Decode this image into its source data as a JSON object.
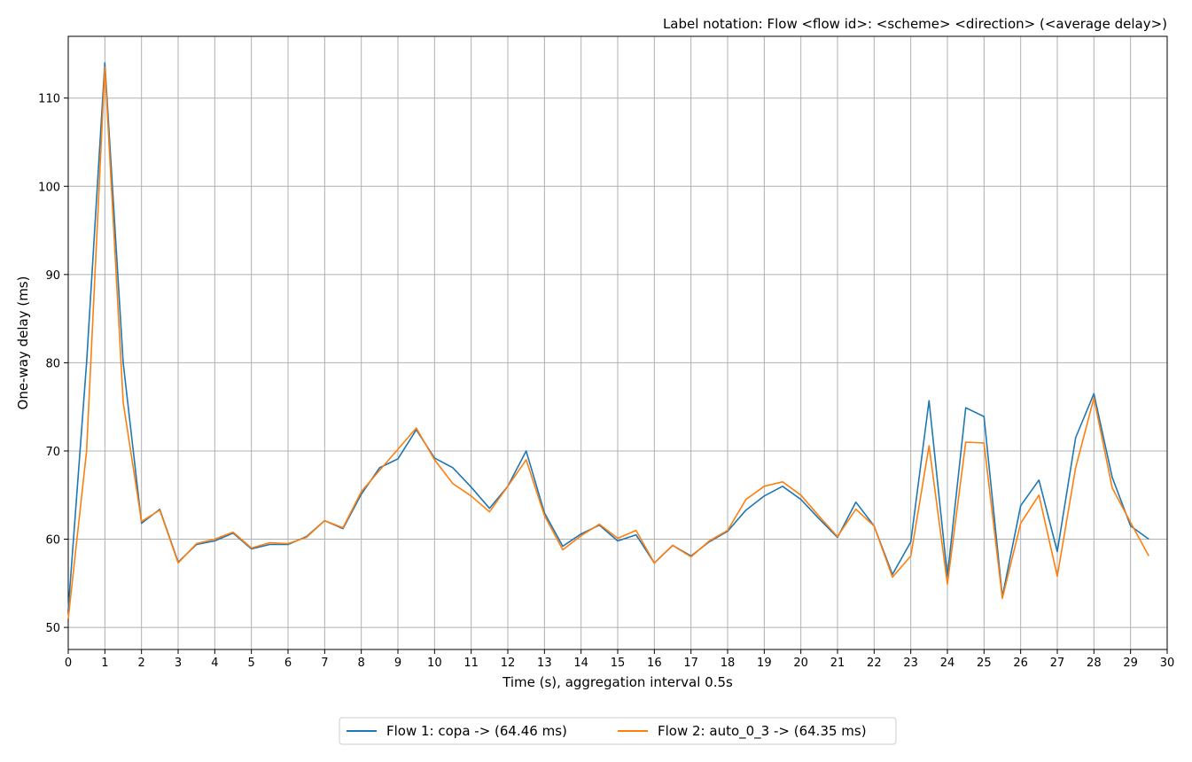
{
  "chart_data": {
    "type": "line",
    "title": "",
    "annotation": "Label notation: Flow <flow id>: <scheme> <direction> (<average delay>)",
    "xlabel": "Time (s), aggregation interval 0.5s",
    "ylabel": "One-way delay (ms)",
    "xlim": [
      0,
      30
    ],
    "ylim": [
      47.5,
      117
    ],
    "xticks": [
      0,
      1,
      2,
      3,
      4,
      5,
      6,
      7,
      8,
      9,
      10,
      11,
      12,
      13,
      14,
      15,
      16,
      17,
      18,
      19,
      20,
      21,
      22,
      23,
      24,
      25,
      26,
      27,
      28,
      29,
      30
    ],
    "yticks": [
      50,
      60,
      70,
      80,
      90,
      100,
      110
    ],
    "grid": true,
    "legend_position": "bottom-center",
    "x": [
      0,
      0.5,
      1,
      1.5,
      2,
      2.5,
      3,
      3.5,
      4,
      4.5,
      5,
      5.5,
      6,
      6.5,
      7,
      7.5,
      8,
      8.5,
      9,
      9.5,
      10,
      10.5,
      11,
      11.5,
      12,
      12.5,
      13,
      13.5,
      14,
      14.5,
      15,
      15.5,
      16,
      16.5,
      17,
      17.5,
      18,
      18.5,
      19,
      19.5,
      20,
      20.5,
      21,
      21.5,
      22,
      22.5,
      23,
      23.5,
      24,
      24.5,
      25,
      25.5,
      26,
      26.5,
      27,
      27.5,
      28,
      28.5,
      29,
      29.5
    ],
    "series": [
      {
        "name": "Flow 1: copa -> (64.46 ms)",
        "color": "#1f77b4",
        "values": [
          52,
          80,
          114,
          80,
          61.8,
          63.4,
          57.4,
          59.4,
          59.8,
          60.7,
          58.9,
          59.4,
          59.4,
          60.3,
          62.1,
          61.2,
          65.1,
          68.1,
          69.1,
          72.4,
          69.2,
          68.1,
          65.9,
          63.5,
          66,
          70,
          63,
          59.2,
          60.6,
          61.6,
          59.8,
          60.5,
          57.3,
          59.3,
          58.1,
          59.7,
          60.9,
          63.3,
          64.9,
          66,
          64.5,
          62.3,
          60.2,
          64.2,
          61.5,
          56,
          59.7,
          75.7,
          55.8,
          74.9,
          73.9,
          53.5,
          63.8,
          66.7,
          58.6,
          71.5,
          76.5,
          67,
          61.5,
          60
        ]
      },
      {
        "name": "Flow 2: auto_0_3 -> (64.35 ms)",
        "color": "#ff7f0e",
        "values": [
          51,
          70,
          113.5,
          75.5,
          62,
          63.3,
          57.3,
          59.5,
          60,
          60.8,
          59,
          59.6,
          59.5,
          60.2,
          62.1,
          61.3,
          65.4,
          67.8,
          70.2,
          72.6,
          69,
          66.3,
          64.9,
          63.1,
          66,
          69,
          62.7,
          58.8,
          60.4,
          61.7,
          60.1,
          61,
          57.3,
          59.3,
          58,
          59.8,
          61,
          64.5,
          66,
          66.5,
          65,
          62.6,
          60.3,
          63.4,
          61.5,
          55.7,
          58.1,
          70.6,
          54.9,
          71,
          70.9,
          53.3,
          61.8,
          65,
          55.8,
          68.1,
          76,
          65.8,
          61.9,
          58.1
        ]
      }
    ]
  }
}
